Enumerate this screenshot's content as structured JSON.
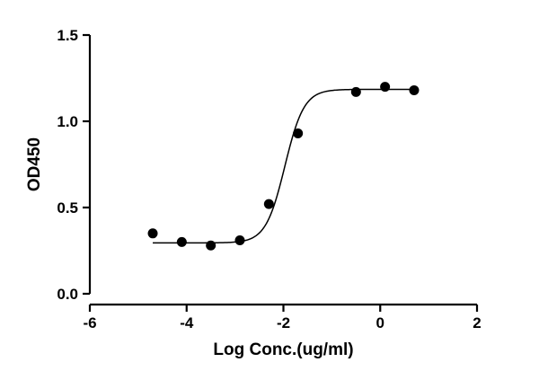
{
  "chart_data": {
    "type": "scatter",
    "title": "",
    "xlabel": "Log Conc.(ug/ml)",
    "ylabel": "OD450",
    "xlim": [
      -6,
      2
    ],
    "ylim": [
      0.0,
      1.5
    ],
    "x_ticks": [
      -6,
      -4,
      -2,
      0,
      2
    ],
    "x_tick_labels": [
      "-6",
      "-4",
      "-2",
      "0",
      "2"
    ],
    "y_ticks": [
      0.0,
      0.5,
      1.0,
      1.5
    ],
    "y_tick_labels": [
      "0.0",
      "0.5",
      "1.0",
      "1.5"
    ],
    "grid": false,
    "legend": "none",
    "series": [
      {
        "x": [
          -4.7,
          -4.1,
          -3.5,
          -2.9,
          -2.3,
          -1.7,
          -0.5,
          0.1,
          0.7
        ],
        "y": [
          0.35,
          0.3,
          0.28,
          0.31,
          0.52,
          0.93,
          1.17,
          1.2,
          1.18
        ]
      }
    ],
    "fit": {
      "model": "4-parameter logistic",
      "bottom": 0.295,
      "top": 1.185,
      "log_ec50": -1.97,
      "hill_slope": 2.2,
      "x_range": [
        -4.7,
        0.7
      ]
    },
    "colors": {
      "axis": "#000000",
      "points": "#000000",
      "curve": "#000000"
    }
  }
}
